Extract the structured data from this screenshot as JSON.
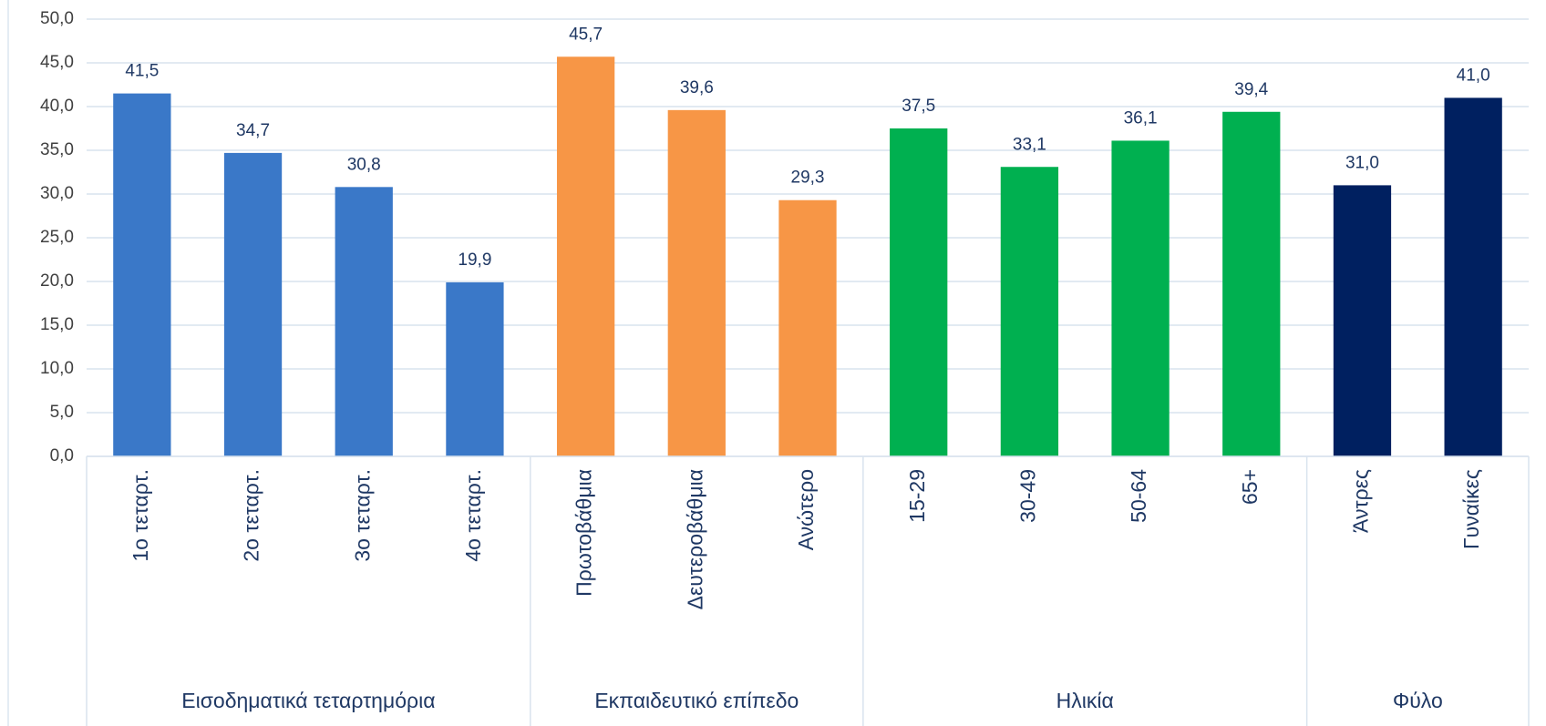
{
  "chart_data": {
    "type": "bar",
    "ylim": [
      0,
      50
    ],
    "yticks": [
      {
        "value": 0,
        "label": "0,0"
      },
      {
        "value": 5,
        "label": "5,0"
      },
      {
        "value": 10,
        "label": "10,0"
      },
      {
        "value": 15,
        "label": "15,0"
      },
      {
        "value": 20,
        "label": "20,0"
      },
      {
        "value": 25,
        "label": "25,0"
      },
      {
        "value": 30,
        "label": "30,0"
      },
      {
        "value": 35,
        "label": "35,0"
      },
      {
        "value": 40,
        "label": "40,0"
      },
      {
        "value": 45,
        "label": "45,0"
      },
      {
        "value": 50,
        "label": "50,0"
      }
    ],
    "grid": true,
    "series": [
      {
        "name": "Εισοδηματικά τεταρτημόρια",
        "color": "#3a78c8",
        "categories": [
          "1ο τεταρτ.",
          "2ο τεταρτ.",
          "3ο τεταρτ.",
          "4ο τεταρτ."
        ],
        "values": [
          41.5,
          34.7,
          30.8,
          19.9
        ],
        "value_labels": [
          "41,5",
          "34,7",
          "30,8",
          "19,9"
        ]
      },
      {
        "name": "Εκπαιδευτικό επίπεδο",
        "color": "#f79646",
        "categories": [
          "Πρωτοβάθμια",
          "Δευτεροβάθμια",
          "Ανώτερο"
        ],
        "values": [
          45.7,
          39.6,
          29.3
        ],
        "value_labels": [
          "45,7",
          "39,6",
          "29,3"
        ]
      },
      {
        "name": "Ηλικία",
        "color": "#00b050",
        "categories": [
          "15-29",
          "30-49",
          "50-64",
          "65+"
        ],
        "values": [
          37.5,
          33.1,
          36.1,
          39.4
        ],
        "value_labels": [
          "37,5",
          "33,1",
          "36,1",
          "39,4"
        ]
      },
      {
        "name": "Φύλο",
        "color": "#002060",
        "categories": [
          "Άντρες",
          "Γυναίκες"
        ],
        "values": [
          31.0,
          41.0
        ],
        "value_labels": [
          "31,0",
          "41,0"
        ]
      }
    ]
  }
}
